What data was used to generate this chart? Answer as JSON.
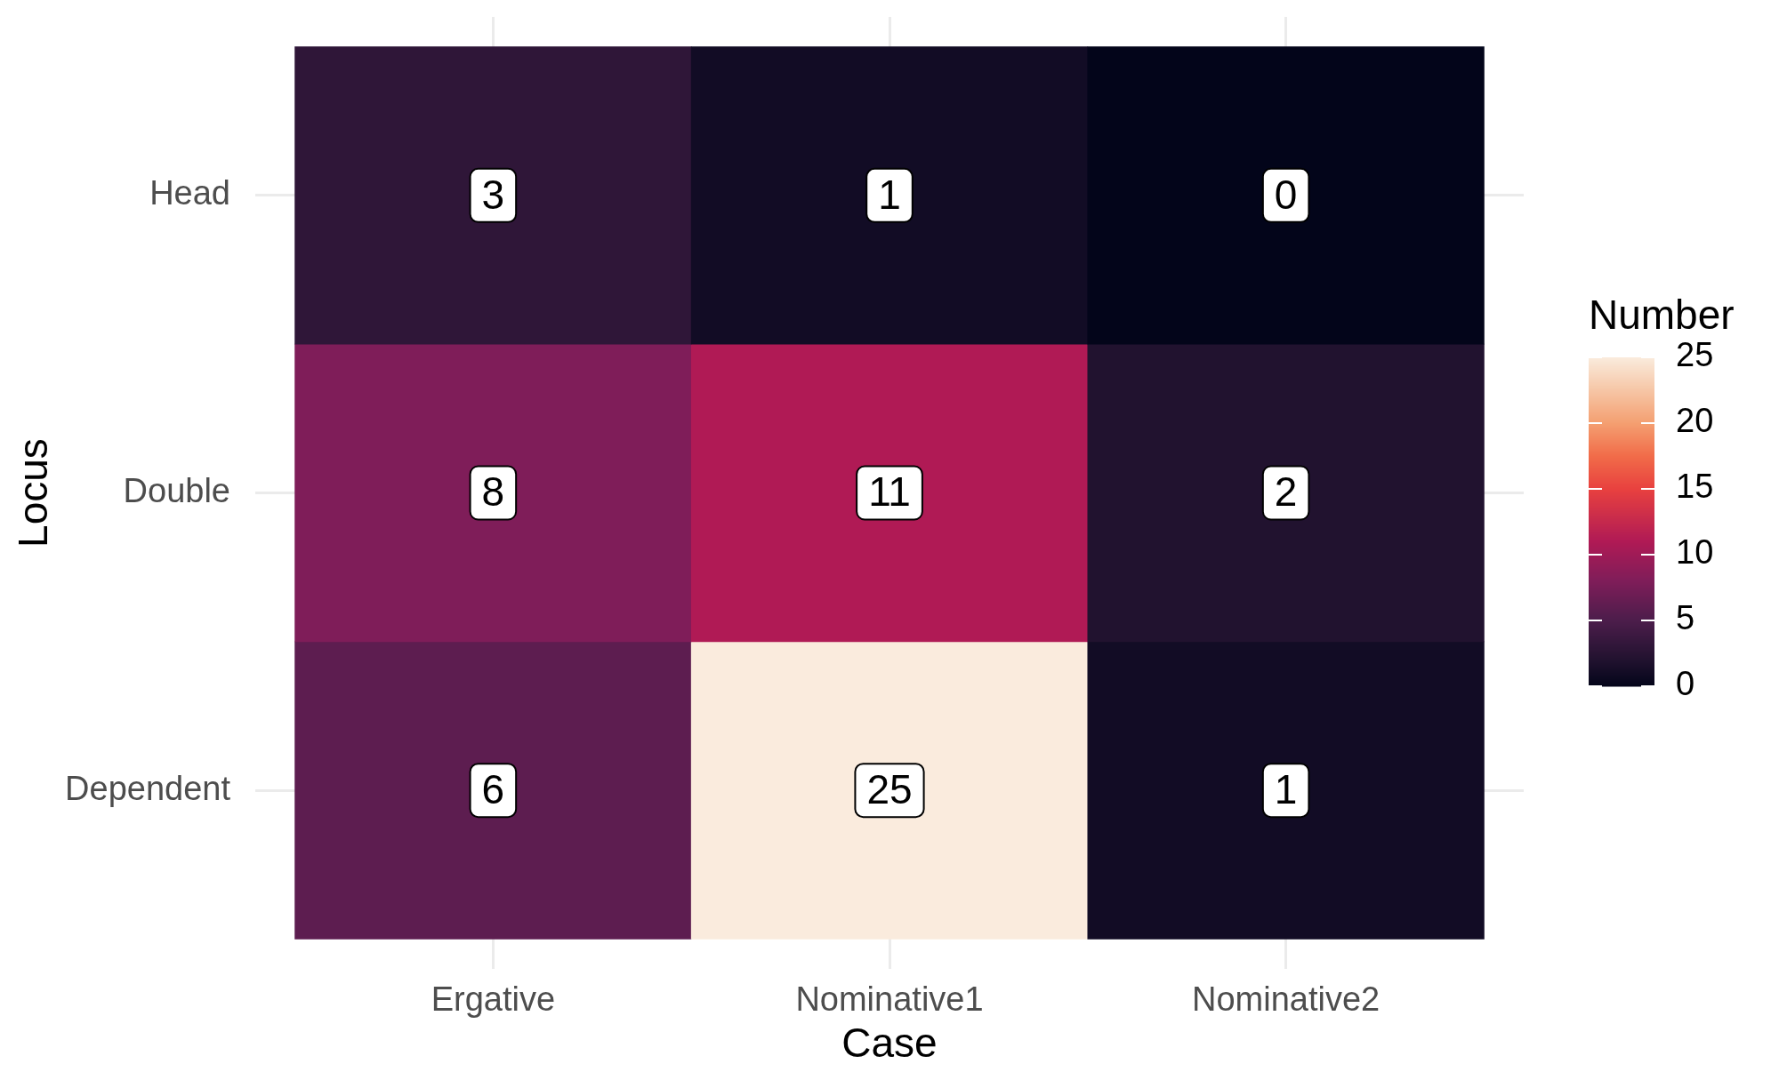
{
  "chart_data": {
    "type": "heatmap",
    "xlabel": "Case",
    "ylabel": "Locus",
    "clabel": "Number",
    "categories": [
      "Ergative",
      "Nominative1",
      "Nominative2"
    ],
    "y_categories": [
      "Head",
      "Double",
      "Dependent"
    ],
    "cells": [
      [
        3,
        1,
        0
      ],
      [
        8,
        11,
        2
      ],
      [
        6,
        25,
        1
      ]
    ],
    "clim": [
      0,
      25
    ],
    "cticks": [
      0,
      5,
      10,
      15,
      20,
      25
    ],
    "data_labels": true,
    "grid": true
  }
}
